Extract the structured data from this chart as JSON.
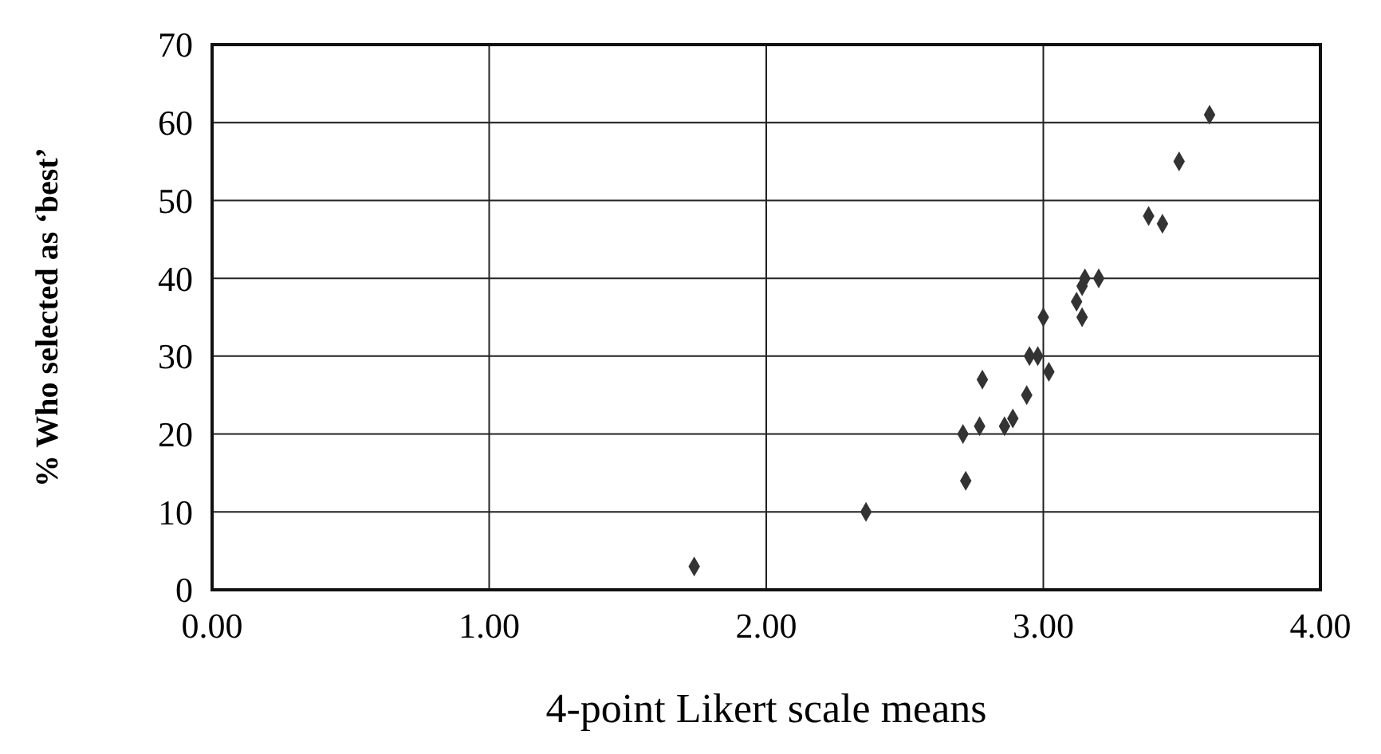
{
  "chart_data": {
    "type": "scatter",
    "xlabel": "4-point Likert scale means",
    "ylabel": "% Who selected as ‘best’",
    "x": [
      1.74,
      2.36,
      2.72,
      2.77,
      2.71,
      2.86,
      2.89,
      2.78,
      2.94,
      2.95,
      2.98,
      3.02,
      3.0,
      3.14,
      3.12,
      3.15,
      3.2,
      3.14,
      3.38,
      3.43,
      3.49,
      3.6
    ],
    "values": [
      3,
      10,
      14,
      21,
      20,
      21,
      22,
      27,
      25,
      30,
      30,
      28,
      35,
      35,
      37,
      40,
      40,
      39,
      48,
      47,
      55,
      61
    ],
    "color": "#333333",
    "marker": "diamond",
    "grid": true,
    "xlim": [
      0,
      4
    ],
    "ylim": [
      0,
      70
    ],
    "xticks": [
      {
        "value": 0,
        "label": "0.00"
      },
      {
        "value": 1,
        "label": "1.00"
      },
      {
        "value": 2,
        "label": "2.00"
      },
      {
        "value": 3,
        "label": "3.00"
      },
      {
        "value": 4,
        "label": "4.00"
      }
    ],
    "yticks": [
      0,
      10,
      20,
      30,
      40,
      50,
      60,
      70
    ]
  }
}
